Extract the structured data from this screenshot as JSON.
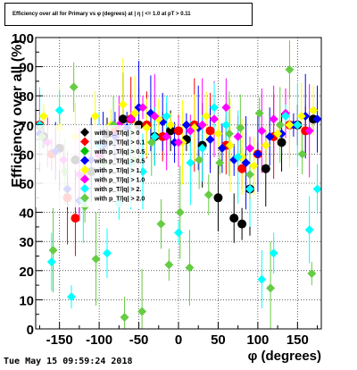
{
  "title": "Efficiency over all for Primary vs φ (degrees) at | η | <= 1.0 at pT > 0.11",
  "timestamp": "Tue May 15 09:59:24 2018",
  "chart_data": {
    "type": "scatter",
    "xlabel": "φ (degrees)",
    "ylabel": "Efficiency over all (%)",
    "xlim": [
      -180,
      180
    ],
    "ylim": [
      0,
      100
    ],
    "xticks": [
      -150,
      -100,
      -50,
      0,
      50,
      100,
      150
    ],
    "yticks": [
      0,
      10,
      20,
      30,
      40,
      50,
      60,
      70,
      80,
      90,
      100
    ],
    "grid": true,
    "legend": {
      "placement": "left-middle",
      "entries": [
        {
          "label": "with p_T/|q| > 0",
          "color": "#000000"
        },
        {
          "label": "with p_T/|q| > 0.1",
          "color": "#ff0000"
        },
        {
          "label": "with p_T/|q| > 0.5",
          "color": "#00c000"
        },
        {
          "label": "with p_T/|q| > 0.5",
          "color": "#0000ff"
        },
        {
          "label": "with p_T/|q| > 1.",
          "color": "#ffff00"
        },
        {
          "label": "with p_T/|q| > 1.0",
          "color": "#ff00ff"
        },
        {
          "label": "with p_T/|q| > 2.",
          "color": "#00ffff"
        },
        {
          "label": "with p_T/|q| > 2.0",
          "color": "#66cc44"
        }
      ]
    },
    "series": [
      {
        "color": "#000000",
        "marker": "circle",
        "x": [
          -170,
          -150,
          -130,
          -110,
          -90,
          -70,
          -50,
          -30,
          -10,
          10,
          30,
          50,
          70,
          80,
          90,
          110,
          130,
          150,
          170
        ],
        "y": [
          66,
          62,
          58,
          54,
          67,
          72,
          70,
          66,
          68,
          65,
          63,
          45,
          38,
          36,
          48,
          55,
          64,
          70,
          72
        ]
      },
      {
        "color": "#ff0000",
        "marker": "circle",
        "x": [
          -175,
          -160,
          -140,
          -130,
          -120,
          -100,
          -80,
          -60,
          -40,
          -20,
          0,
          20,
          40,
          60,
          80,
          100,
          120,
          140,
          160
        ],
        "y": [
          70,
          60,
          45,
          38,
          52,
          60,
          68,
          72,
          70,
          66,
          68,
          70,
          68,
          63,
          55,
          60,
          66,
          70,
          68
        ]
      },
      {
        "color": "#0000ff",
        "marker": "diamond",
        "x": [
          -175,
          -155,
          -140,
          -125,
          -110,
          -95,
          -80,
          -65,
          -50,
          -35,
          -20,
          -5,
          10,
          25,
          40,
          55,
          70,
          85,
          100,
          115,
          130,
          145,
          160,
          175
        ],
        "y": [
          67,
          61,
          48,
          44,
          58,
          63,
          66,
          69,
          76,
          74,
          71,
          64,
          70,
          69,
          65,
          62,
          58,
          57,
          60,
          66,
          67,
          70,
          73,
          72
        ]
      },
      {
        "color": "#ffff00",
        "marker": "diamond",
        "x": [
          -170,
          -150,
          -130,
          -105,
          -85,
          -70,
          -55,
          -40,
          -25,
          -10,
          5,
          20,
          35,
          50,
          65,
          80,
          95,
          110,
          125,
          140,
          155,
          170
        ],
        "y": [
          73,
          69,
          66,
          73,
          70,
          77,
          74,
          69,
          72,
          70,
          64,
          69,
          73,
          67,
          63,
          59,
          56,
          63,
          67,
          70,
          73,
          75
        ]
      },
      {
        "color": "#ff00ff",
        "marker": "diamond",
        "x": [
          -165,
          -145,
          -125,
          -100,
          -75,
          -60,
          -45,
          -30,
          -15,
          0,
          15,
          30,
          45,
          60,
          75,
          90,
          105,
          120,
          135,
          150,
          165
        ],
        "y": [
          64,
          58,
          53,
          60,
          70,
          72,
          76,
          73,
          66,
          64,
          68,
          70,
          72,
          76,
          66,
          62,
          68,
          72,
          74,
          70,
          68
        ]
      },
      {
        "color": "#00ffff",
        "marker": "diamond",
        "x": [
          -175,
          -160,
          -150,
          -135,
          -120,
          -100,
          -90,
          -75,
          -60,
          -45,
          -30,
          -15,
          0,
          15,
          30,
          45,
          60,
          75,
          90,
          105,
          120,
          135,
          150,
          165,
          175
        ],
        "y": [
          70,
          23,
          75,
          11,
          44,
          63,
          26,
          43,
          57,
          54,
          66,
          73,
          33,
          57,
          62,
          76,
          70,
          59,
          48,
          17,
          26,
          73,
          70,
          34,
          48
        ]
      },
      {
        "color": "#66cc44",
        "marker": "diamond",
        "x": [
          -172,
          -158,
          -143,
          -132,
          -118,
          -104,
          -94,
          -82,
          -68,
          -56,
          -46,
          -34,
          -22,
          -12,
          2,
          14,
          26,
          38,
          52,
          64,
          78,
          90,
          102,
          116,
          128,
          140,
          156,
          168
        ],
        "y": [
          66,
          27,
          54,
          83,
          42,
          24,
          57,
          70,
          4,
          58,
          6,
          64,
          36,
          22,
          40,
          21,
          58,
          46,
          57,
          67,
          69,
          53,
          74,
          14,
          70,
          89,
          60,
          19
        ]
      }
    ]
  }
}
